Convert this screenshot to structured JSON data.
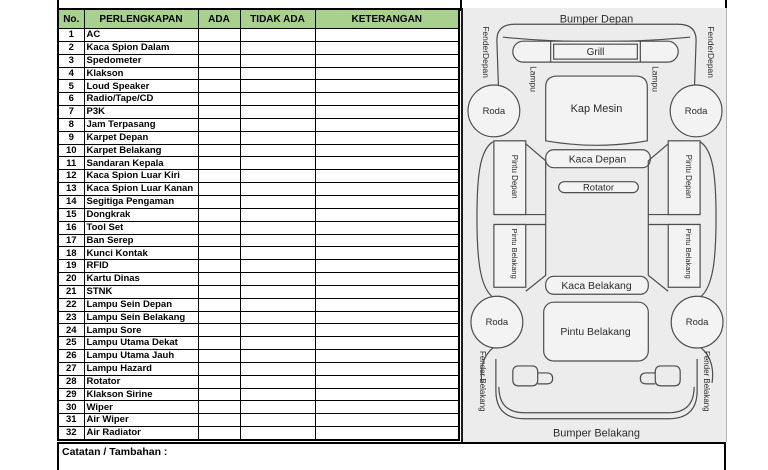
{
  "form": {
    "table": {
      "headers": [
        "No.",
        "PERLENGKAPAN",
        "ADA",
        "TIDAK ADA",
        "KETERANGAN"
      ],
      "rows": [
        {
          "no": "1",
          "item": "AC",
          "ada": "",
          "tidak_ada": "",
          "keterangan": ""
        },
        {
          "no": "2",
          "item": "Kaca Spion Dalam",
          "ada": "",
          "tidak_ada": "",
          "keterangan": ""
        },
        {
          "no": "3",
          "item": "Spedometer",
          "ada": "",
          "tidak_ada": "",
          "keterangan": ""
        },
        {
          "no": "4",
          "item": "Klakson",
          "ada": "",
          "tidak_ada": "",
          "keterangan": ""
        },
        {
          "no": "5",
          "item": "Loud Speaker",
          "ada": "",
          "tidak_ada": "",
          "keterangan": ""
        },
        {
          "no": "6",
          "item": "Radio/Tape/CD",
          "ada": "",
          "tidak_ada": "",
          "keterangan": ""
        },
        {
          "no": "7",
          "item": "P3K",
          "ada": "",
          "tidak_ada": "",
          "keterangan": ""
        },
        {
          "no": "8",
          "item": "Jam Terpasang",
          "ada": "",
          "tidak_ada": "",
          "keterangan": ""
        },
        {
          "no": "9",
          "item": "Karpet Depan",
          "ada": "",
          "tidak_ada": "",
          "keterangan": ""
        },
        {
          "no": "10",
          "item": "Karpet Belakang",
          "ada": "",
          "tidak_ada": "",
          "keterangan": ""
        },
        {
          "no": "11",
          "item": "Sandaran Kepala",
          "ada": "",
          "tidak_ada": "",
          "keterangan": ""
        },
        {
          "no": "12",
          "item": "Kaca Spion Luar Kiri",
          "ada": "",
          "tidak_ada": "",
          "keterangan": ""
        },
        {
          "no": "13",
          "item": "Kaca Spion Luar Kanan",
          "ada": "",
          "tidak_ada": "",
          "keterangan": ""
        },
        {
          "no": "14",
          "item": "Segitiga Pengaman",
          "ada": "",
          "tidak_ada": "",
          "keterangan": ""
        },
        {
          "no": "15",
          "item": "Dongkrak",
          "ada": "",
          "tidak_ada": "",
          "keterangan": ""
        },
        {
          "no": "16",
          "item": "Tool Set",
          "ada": "",
          "tidak_ada": "",
          "keterangan": ""
        },
        {
          "no": "17",
          "item": "Ban Serep",
          "ada": "",
          "tidak_ada": "",
          "keterangan": ""
        },
        {
          "no": "18",
          "item": "Kunci Kontak",
          "ada": "",
          "tidak_ada": "",
          "keterangan": ""
        },
        {
          "no": "19",
          "item": "RFID",
          "ada": "",
          "tidak_ada": "",
          "keterangan": ""
        },
        {
          "no": "20",
          "item": "Kartu Dinas",
          "ada": "",
          "tidak_ada": "",
          "keterangan": ""
        },
        {
          "no": "21",
          "item": "STNK",
          "ada": "",
          "tidak_ada": "",
          "keterangan": ""
        },
        {
          "no": "22",
          "item": "Lampu Sein Depan",
          "ada": "",
          "tidak_ada": "",
          "keterangan": ""
        },
        {
          "no": "23",
          "item": "Lampu Sein Belakang",
          "ada": "",
          "tidak_ada": "",
          "keterangan": ""
        },
        {
          "no": "24",
          "item": "Lampu Sore",
          "ada": "",
          "tidak_ada": "",
          "keterangan": ""
        },
        {
          "no": "25",
          "item": "Lampu Utama Dekat",
          "ada": "",
          "tidak_ada": "",
          "keterangan": ""
        },
        {
          "no": "26",
          "item": "Lampu Utama Jauh",
          "ada": "",
          "tidak_ada": "",
          "keterangan": ""
        },
        {
          "no": "27",
          "item": "Lampu Hazard",
          "ada": "",
          "tidak_ada": "",
          "keterangan": ""
        },
        {
          "no": "28",
          "item": "Rotator",
          "ada": "",
          "tidak_ada": "",
          "keterangan": ""
        },
        {
          "no": "29",
          "item": "Klakson Sirine",
          "ada": "",
          "tidak_ada": "",
          "keterangan": ""
        },
        {
          "no": "30",
          "item": "Wiper",
          "ada": "",
          "tidak_ada": "",
          "keterangan": ""
        },
        {
          "no": "31",
          "item": "Air Wiper",
          "ada": "",
          "tidak_ada": "",
          "keterangan": ""
        },
        {
          "no": "32",
          "item": "Air Radiator",
          "ada": "",
          "tidak_ada": "",
          "keterangan": ""
        }
      ]
    },
    "notes_label": "Catatan / Tambahan :"
  },
  "diagram": {
    "bumper_depan": "Bumper Depan",
    "grill": "Grill",
    "fender_depan_left": "FenderDepan",
    "fender_depan_right": "FenderDepan",
    "lampu_left": "Lampu",
    "lampu_right": "Lampu",
    "roda_front_left": "Roda",
    "roda_front_right": "Roda",
    "kap_mesin": "Kap Mesin",
    "kaca_depan": "Kaca Depan",
    "rotator": "Rotator",
    "pintu_depan_left": "Pintu Depan",
    "pintu_depan_right": "Pintu Depan",
    "pintu_belakang_left": "Pintu Belakang",
    "pintu_belakang_right": "Pintu Belakang",
    "kaca_belakang": "Kaca Belakang",
    "roda_rear_left": "Roda",
    "roda_rear_right": "Roda",
    "pintu_belakang_tailgate": "Pintu Belakang",
    "fender_belakang_left": "Fender Belakang",
    "fender_belakang_right": "Fender Belakang",
    "bumper_belakang": "Bumper Belakang"
  },
  "colors": {
    "header_bg": "#a9d18e",
    "panel_bg": "#edecec",
    "table_border": "#000000",
    "diagram_line": "#4d4d4d"
  }
}
